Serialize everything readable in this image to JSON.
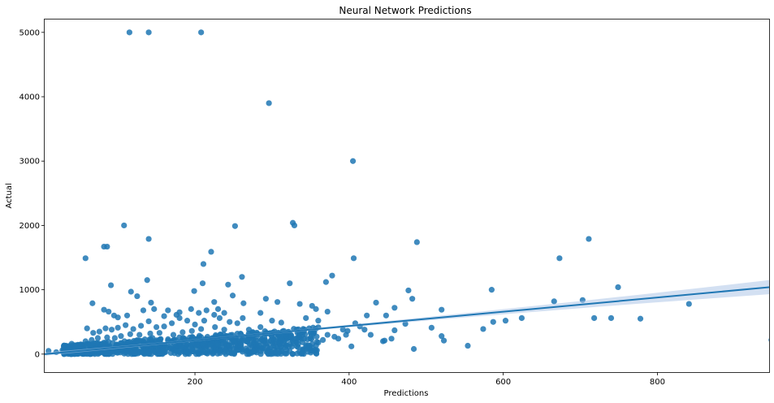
{
  "chart_data": {
    "type": "scatter",
    "title": "Neural Network Predictions",
    "xlabel": "Predictions",
    "ylabel": "Actual",
    "xlim": [
      5,
      945
    ],
    "ylim": [
      -280,
      5200
    ],
    "xticks": [
      200,
      400,
      600,
      800
    ],
    "yticks": [
      0,
      1000,
      2000,
      3000,
      4000,
      5000
    ],
    "grid": false,
    "colors": {
      "points": "#1f77b4",
      "line": "#1f77b4",
      "band": "#aec7e8"
    },
    "regression": {
      "x": [
        5,
        945
      ],
      "y": [
        0,
        1040
      ],
      "ci_halfwidth": [
        15,
        110
      ]
    },
    "points": [
      [
        115,
        5000
      ],
      [
        140,
        5000
      ],
      [
        208,
        5000
      ],
      [
        296,
        3900
      ],
      [
        405,
        3000
      ],
      [
        108,
        2000
      ],
      [
        252,
        1990
      ],
      [
        327,
        2040
      ],
      [
        329,
        2000
      ],
      [
        140,
        1790
      ],
      [
        488,
        1740
      ],
      [
        711,
        1790
      ],
      [
        82,
        1670
      ],
      [
        86,
        1670
      ],
      [
        58,
        1490
      ],
      [
        221,
        1590
      ],
      [
        406,
        1490
      ],
      [
        673,
        1490
      ],
      [
        211,
        1400
      ],
      [
        378,
        1220
      ],
      [
        370,
        1120
      ],
      [
        261,
        1200
      ],
      [
        138,
        1150
      ],
      [
        91,
        1070
      ],
      [
        323,
        1100
      ],
      [
        210,
        1100
      ],
      [
        199,
        980
      ],
      [
        117,
        970
      ],
      [
        243,
        1080
      ],
      [
        125,
        900
      ],
      [
        249,
        910
      ],
      [
        225,
        810
      ],
      [
        263,
        790
      ],
      [
        292,
        860
      ],
      [
        336,
        780
      ],
      [
        307,
        810
      ],
      [
        67,
        790
      ],
      [
        143,
        800
      ],
      [
        82,
        690
      ],
      [
        88,
        660
      ],
      [
        160,
        590
      ],
      [
        176,
        610
      ],
      [
        372,
        660
      ],
      [
        352,
        750
      ],
      [
        357,
        700
      ],
      [
        477,
        990
      ],
      [
        482,
        860
      ],
      [
        585,
        1000
      ],
      [
        749,
        1040
      ],
      [
        703,
        840
      ],
      [
        666,
        820
      ],
      [
        778,
        550
      ],
      [
        740,
        560
      ],
      [
        718,
        560
      ],
      [
        841,
        780
      ],
      [
        624,
        560
      ],
      [
        603,
        520
      ],
      [
        587,
        500
      ],
      [
        574,
        390
      ],
      [
        520,
        690
      ],
      [
        459,
        720
      ],
      [
        435,
        800
      ],
      [
        448,
        600
      ],
      [
        423,
        600
      ],
      [
        408,
        480
      ],
      [
        392,
        380
      ],
      [
        398,
        360
      ],
      [
        507,
        410
      ],
      [
        523,
        210
      ],
      [
        520,
        280
      ],
      [
        554,
        130
      ],
      [
        484,
        80
      ],
      [
        455,
        240
      ],
      [
        459,
        370
      ],
      [
        444,
        200
      ],
      [
        446,
        210
      ],
      [
        403,
        120
      ],
      [
        473,
        470
      ],
      [
        948,
        220
      ],
      [
        360,
        520
      ],
      [
        344,
        560
      ],
      [
        312,
        490
      ],
      [
        285,
        420
      ],
      [
        270,
        380
      ],
      [
        332,
        380
      ],
      [
        354,
        330
      ],
      [
        372,
        300
      ],
      [
        381,
        270
      ],
      [
        360,
        180
      ],
      [
        348,
        100
      ],
      [
        340,
        50
      ],
      [
        328,
        240
      ],
      [
        318,
        290
      ],
      [
        300,
        330
      ],
      [
        290,
        260
      ],
      [
        275,
        310
      ],
      [
        266,
        200
      ],
      [
        255,
        480
      ],
      [
        245,
        500
      ],
      [
        232,
        560
      ],
      [
        225,
        610
      ],
      [
        212,
        520
      ],
      [
        200,
        460
      ],
      [
        190,
        520
      ],
      [
        180,
        560
      ],
      [
        170,
        480
      ],
      [
        160,
        430
      ],
      [
        150,
        420
      ],
      [
        140,
        510
      ],
      [
        130,
        440
      ],
      [
        120,
        390
      ],
      [
        110,
        450
      ],
      [
        100,
        410
      ],
      [
        92,
        380
      ],
      [
        84,
        400
      ],
      [
        76,
        350
      ],
      [
        68,
        330
      ],
      [
        60,
        400
      ],
      [
        52,
        140
      ],
      [
        44,
        120
      ],
      [
        36,
        80
      ],
      [
        28,
        60
      ],
      [
        10,
        50
      ],
      [
        20,
        30
      ],
      [
        30,
        130
      ],
      [
        40,
        160
      ],
      [
        112,
        600
      ],
      [
        100,
        570
      ],
      [
        95,
        600
      ],
      [
        205,
        640
      ],
      [
        215,
        680
      ],
      [
        230,
        700
      ],
      [
        238,
        640
      ],
      [
        180,
        650
      ],
      [
        195,
        700
      ],
      [
        133,
        680
      ],
      [
        147,
        700
      ],
      [
        165,
        680
      ],
      [
        285,
        640
      ],
      [
        300,
        520
      ],
      [
        262,
        560
      ],
      [
        238,
        380
      ],
      [
        226,
        420
      ],
      [
        208,
        390
      ],
      [
        196,
        360
      ],
      [
        184,
        340
      ],
      [
        172,
        300
      ],
      [
        154,
        330
      ],
      [
        142,
        320
      ],
      [
        128,
        300
      ],
      [
        116,
        310
      ],
      [
        104,
        280
      ],
      [
        96,
        250
      ],
      [
        86,
        260
      ],
      [
        74,
        250
      ],
      [
        66,
        220
      ],
      [
        58,
        200
      ],
      [
        50,
        90
      ],
      [
        64,
        140
      ],
      [
        72,
        170
      ],
      [
        80,
        150
      ],
      [
        88,
        190
      ],
      [
        310,
        170
      ],
      [
        322,
        120
      ],
      [
        334,
        160
      ],
      [
        346,
        230
      ],
      [
        366,
        220
      ],
      [
        386,
        240
      ],
      [
        396,
        300
      ],
      [
        414,
        430
      ],
      [
        420,
        380
      ],
      [
        428,
        300
      ],
      [
        260,
        100
      ],
      [
        250,
        80
      ],
      [
        240,
        60
      ],
      [
        230,
        140
      ],
      [
        220,
        150
      ],
      [
        280,
        140
      ],
      [
        292,
        160
      ],
      [
        304,
        120
      ],
      [
        316,
        200
      ],
      [
        270,
        250
      ],
      [
        185,
        240
      ],
      [
        175,
        220
      ],
      [
        165,
        210
      ],
      [
        155,
        230
      ],
      [
        145,
        250
      ],
      [
        135,
        230
      ],
      [
        125,
        210
      ],
      [
        115,
        190
      ],
      [
        105,
        170
      ],
      [
        98,
        150
      ]
    ],
    "dense_band": {
      "x_range": [
        30,
        360
      ],
      "y_max_at_x_min": 140,
      "y_max_at_x_max": 420
    }
  }
}
